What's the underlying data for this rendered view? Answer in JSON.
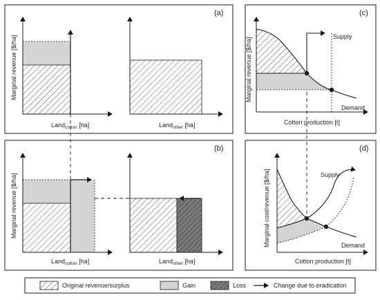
{
  "panels": {
    "a": {
      "id": "(a)",
      "ylabel": "Marginal revenue [$/ha]",
      "x1_main": "Land",
      "x1_sub": "cotton",
      "x1_unit": " [ha]",
      "x2_main": "Land",
      "x2_sub": "other",
      "x2_unit": " [ha]"
    },
    "b": {
      "id": "(b)",
      "ylabel": "Marginal revenue [$/ha]",
      "x1_main": "Land",
      "x1_sub": "cotton",
      "x1_unit": " [ha]",
      "x2_main": "Land",
      "x2_sub": "other",
      "x2_unit": " [ha]"
    },
    "c": {
      "id": "(c)",
      "ylabel": "Marginal revenue [$/ha]",
      "xlabel": "Cotton production [t]",
      "supply": "Supply",
      "demand": "Demand"
    },
    "d": {
      "id": "(d)",
      "ylabel": "Marginal cost/revenue [$/ha]",
      "xlabel": "Cotton production [t]",
      "supply": "Supply",
      "demand": "Demand"
    }
  },
  "legend": {
    "original": "Original revenue/surplus",
    "gain": "Gain",
    "loss": "Loss",
    "change": "Change due to eradication"
  },
  "colors": {
    "gain": "#d4d4d4",
    "loss": "#7a7a7a",
    "stroke": "#1a1a1a"
  }
}
